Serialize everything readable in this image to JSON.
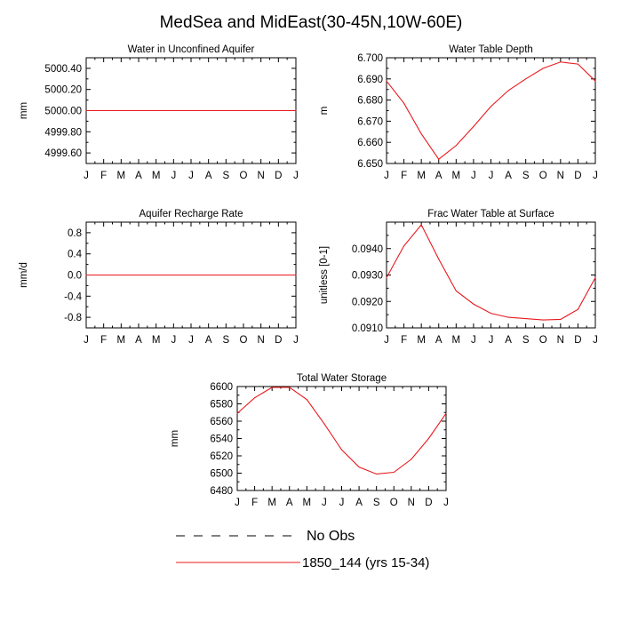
{
  "page_title": "MedSea and MidEast(30-45N,10W-60E)",
  "colors": {
    "model_line": "#e8191e",
    "obs_line": "#000000",
    "axis": "#000000"
  },
  "legend": {
    "items": [
      {
        "label": "No Obs",
        "style": "dashed",
        "color": "#000000"
      },
      {
        "label": "1850_144 (yrs 15-34)",
        "style": "solid",
        "color": "#e8191e"
      }
    ]
  },
  "chart_data": [
    {
      "type": "line",
      "title": "Water in Unconfined Aquifer",
      "ylabel": "mm",
      "x": [
        "J",
        "F",
        "M",
        "A",
        "M",
        "J",
        "J",
        "A",
        "S",
        "O",
        "N",
        "D",
        "J"
      ],
      "ylim": [
        4999.5,
        5000.5
      ],
      "yticks": [
        4999.6,
        4999.8,
        5000.0,
        5000.2,
        5000.4
      ],
      "ytick_labels": [
        "4999.60",
        "4999.80",
        "5000.00",
        "5000.20",
        "5000.40"
      ],
      "series": [
        {
          "values": [
            5000,
            5000,
            5000,
            5000,
            5000,
            5000,
            5000,
            5000,
            5000,
            5000,
            5000,
            5000,
            5000
          ]
        }
      ]
    },
    {
      "type": "line",
      "title": "Water Table Depth",
      "ylabel": "m",
      "x": [
        "J",
        "F",
        "M",
        "A",
        "M",
        "J",
        "J",
        "A",
        "S",
        "O",
        "N",
        "D",
        "J"
      ],
      "ylim": [
        6.65,
        6.7
      ],
      "yticks": [
        6.65,
        6.66,
        6.67,
        6.68,
        6.69,
        6.7
      ],
      "ytick_labels": [
        "6.650",
        "6.660",
        "6.670",
        "6.680",
        "6.690",
        "6.700"
      ],
      "series": [
        {
          "values": [
            6.689,
            6.6785,
            6.664,
            6.652,
            6.6585,
            6.6675,
            6.677,
            6.6845,
            6.69,
            6.695,
            6.698,
            6.697,
            6.689
          ]
        }
      ]
    },
    {
      "type": "line",
      "title": "Aquifer Recharge Rate",
      "ylabel": "mm/d",
      "x": [
        "J",
        "F",
        "M",
        "A",
        "M",
        "J",
        "J",
        "A",
        "S",
        "O",
        "N",
        "D",
        "J"
      ],
      "ylim": [
        -1.0,
        1.0
      ],
      "yticks": [
        -0.8,
        -0.4,
        0.0,
        0.4,
        0.8
      ],
      "ytick_labels": [
        "-0.8",
        "-0.4",
        "0.0",
        "0.4",
        "0.8"
      ],
      "series": [
        {
          "values": [
            0,
            0,
            0,
            0,
            0,
            0,
            0,
            0,
            0,
            0,
            0,
            0,
            0
          ]
        }
      ]
    },
    {
      "type": "line",
      "title": "Frac Water Table at Surface",
      "ylabel": "unitless [0-1]",
      "x": [
        "J",
        "F",
        "M",
        "A",
        "M",
        "J",
        "J",
        "A",
        "S",
        "O",
        "N",
        "D",
        "J"
      ],
      "ylim": [
        0.091,
        0.095
      ],
      "yticks": [
        0.091,
        0.092,
        0.093,
        0.094
      ],
      "ytick_labels": [
        "0.0910",
        "0.0920",
        "0.0930",
        "0.0940"
      ],
      "series": [
        {
          "values": [
            0.0929,
            0.0941,
            0.0949,
            0.0936,
            0.0924,
            0.0919,
            0.09155,
            0.0914,
            0.09135,
            0.0913,
            0.09132,
            0.0917,
            0.0929
          ]
        }
      ]
    },
    {
      "type": "line",
      "title": "Total Water Storage",
      "ylabel": "mm",
      "x": [
        "J",
        "F",
        "M",
        "A",
        "M",
        "J",
        "J",
        "A",
        "S",
        "O",
        "N",
        "D",
        "J"
      ],
      "ylim": [
        6480,
        6600
      ],
      "yticks": [
        6480,
        6500,
        6520,
        6540,
        6560,
        6580,
        6600
      ],
      "ytick_labels": [
        "6480",
        "6500",
        "6520",
        "6540",
        "6560",
        "6580",
        "6600"
      ],
      "series": [
        {
          "values": [
            6569,
            6587,
            6599,
            6599,
            6585,
            6557,
            6527,
            6507,
            6499,
            6501,
            6516,
            6540,
            6569
          ]
        }
      ]
    }
  ]
}
